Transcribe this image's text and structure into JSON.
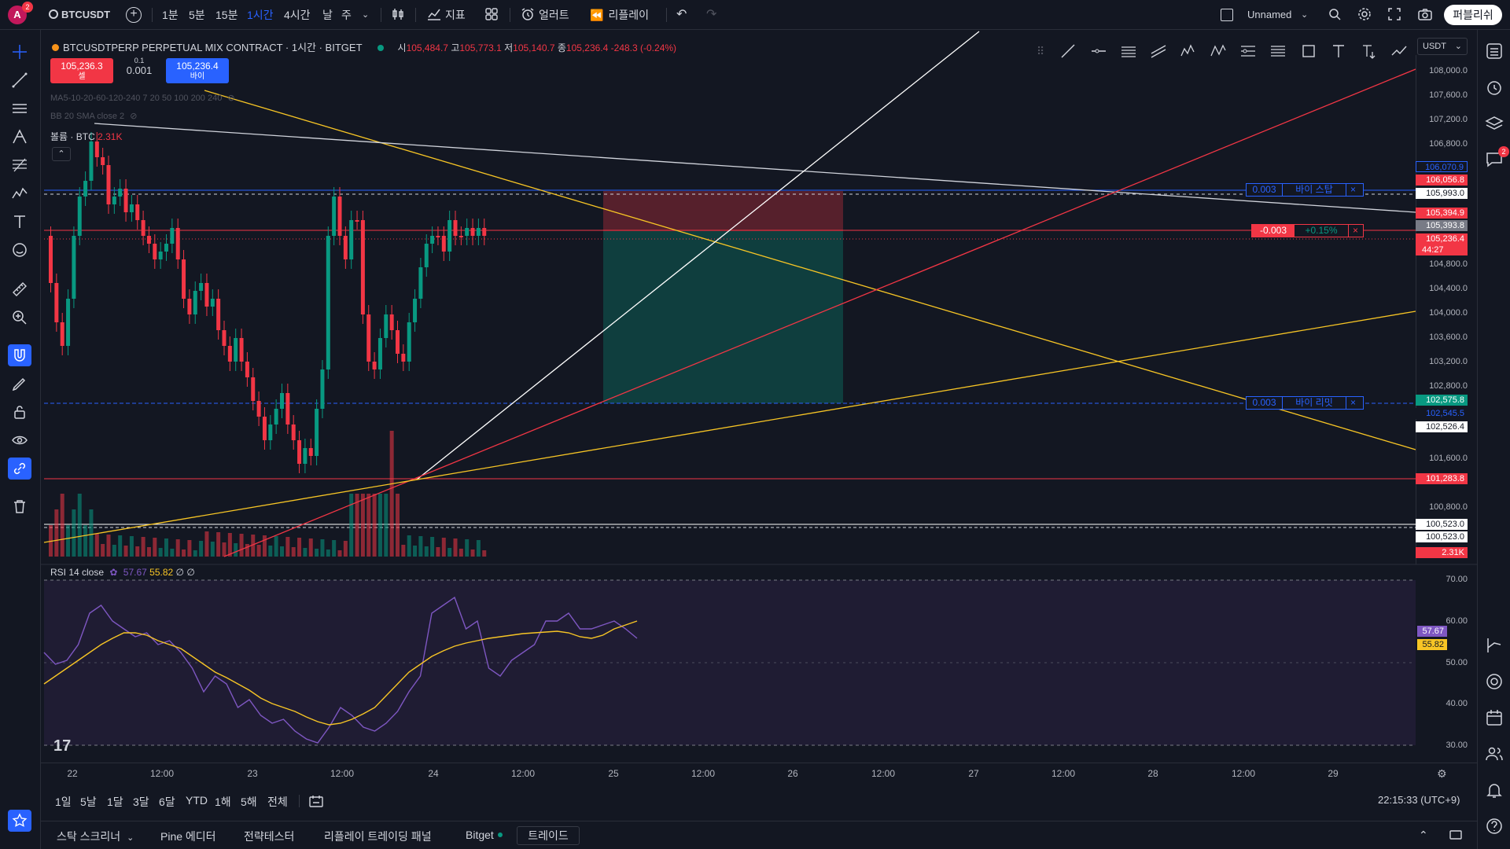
{
  "topbar": {
    "avatar_letter": "A",
    "avatar_badge": "2",
    "symbol": "BTCUSDT",
    "intervals": [
      "1분",
      "5분",
      "15분",
      "1시간",
      "4시간",
      "날",
      "주"
    ],
    "active_interval": "1시간",
    "indicators_label": "지표",
    "alert_label": "얼러트",
    "replay_label": "리플레이",
    "layout_name": "Unnamed",
    "publish_label": "퍼블리쉬"
  },
  "legend": {
    "title": "BTCUSDTPERP PERPETUAL MIX CONTRACT · 1시간 · BITGET",
    "open_label": "시",
    "open": "105,484.7",
    "high_label": "고",
    "high": "105,773.1",
    "low_label": "저",
    "low": "105,140.7",
    "close_label": "종",
    "close": "105,236.4",
    "change": "-248.3 (-0.24%)",
    "sell_price": "105,236.3",
    "sell_label": "셀",
    "qty_top": "0.1",
    "qty": "0.001",
    "buy_price": "105,236.4",
    "buy_label": "바이",
    "ma_label": "MA5-10-20-60-120-240 7 20 50 100 200 240",
    "bb_label": "BB 20 SMA close 2",
    "volume_label": "볼륨 · BTC",
    "volume_value": "2.31K"
  },
  "price_axis": {
    "unit": "USDT",
    "ticks": [
      "108,000.0",
      "107,600.0",
      "107,200.0",
      "106,800.0",
      "104,800.0",
      "104,400.0",
      "104,000.0",
      "103,600.0",
      "103,200.0",
      "102,800.0",
      "101,600.0",
      "100,800.0"
    ],
    "labels": [
      {
        "text": "106,070.9",
        "color": "#2962ff",
        "bg": "#131722"
      },
      {
        "text": "106,056.8",
        "color": "#ffffff",
        "bg": "#f23645"
      },
      {
        "text": "105,993.0",
        "color": "#131722",
        "bg": "#ffffff"
      },
      {
        "text": "105,394.9",
        "color": "#ffffff",
        "bg": "#f23645"
      },
      {
        "text": "105,393.8",
        "color": "#ffffff",
        "bg": "#787b86"
      },
      {
        "text": "105,236.4",
        "color": "#ffffff",
        "bg": "#f23645"
      },
      {
        "text": "44:27",
        "color": "#ffffff",
        "bg": "#f23645"
      },
      {
        "text": "102,575.8",
        "color": "#ffffff",
        "bg": "#089981"
      },
      {
        "text": "102,545.5",
        "color": "#2962ff",
        "bg": "#131722"
      },
      {
        "text": "102,526.4",
        "color": "#131722",
        "bg": "#ffffff"
      },
      {
        "text": "101,283.8",
        "color": "#ffffff",
        "bg": "#f23645"
      },
      {
        "text": "100,523.0",
        "color": "#131722",
        "bg": "#ffffff"
      },
      {
        "text": "100,523.0",
        "color": "#131722",
        "bg": "#ffffff"
      },
      {
        "text": "2.31K",
        "color": "#ffffff",
        "bg": "#f23645"
      }
    ]
  },
  "orders": {
    "stop": {
      "qty": "0.003",
      "label": "바이 스탑",
      "close": "×"
    },
    "position": {
      "qty": "-0.003",
      "pnl": "+0.15%",
      "close": "×"
    },
    "limit": {
      "qty": "0.003",
      "label": "바이 리밋",
      "close": "×"
    }
  },
  "rsi": {
    "label": "RSI 14 close",
    "value1": "57.67",
    "value2": "55.82",
    "extra": "∅ ∅",
    "ticks": [
      "70.00",
      "60.00",
      "50.00",
      "40.00",
      "30.00"
    ],
    "badge1": "57.67",
    "badge2": "55.82"
  },
  "time_axis": [
    "22",
    "12:00",
    "23",
    "12:00",
    "24",
    "12:00",
    "25",
    "12:00",
    "26",
    "12:00",
    "27",
    "12:00",
    "28",
    "12:00",
    "29"
  ],
  "ranges": [
    "1일",
    "5날",
    "1달",
    "3달",
    "6달",
    "YTD",
    "1해",
    "5해",
    "전체"
  ],
  "clock": "22:15:33 (UTC+9)",
  "bottom_tabs": [
    "스탁 스크리너",
    "Pine 에디터",
    "전략테스터",
    "리플레이 트레이딩 패널",
    "Bitget",
    "트레이드"
  ],
  "colors": {
    "up": "#089981",
    "down": "#f23645",
    "accent": "#2962ff",
    "rsi": "#7e57c2",
    "rsi_ma": "#f7c525"
  }
}
